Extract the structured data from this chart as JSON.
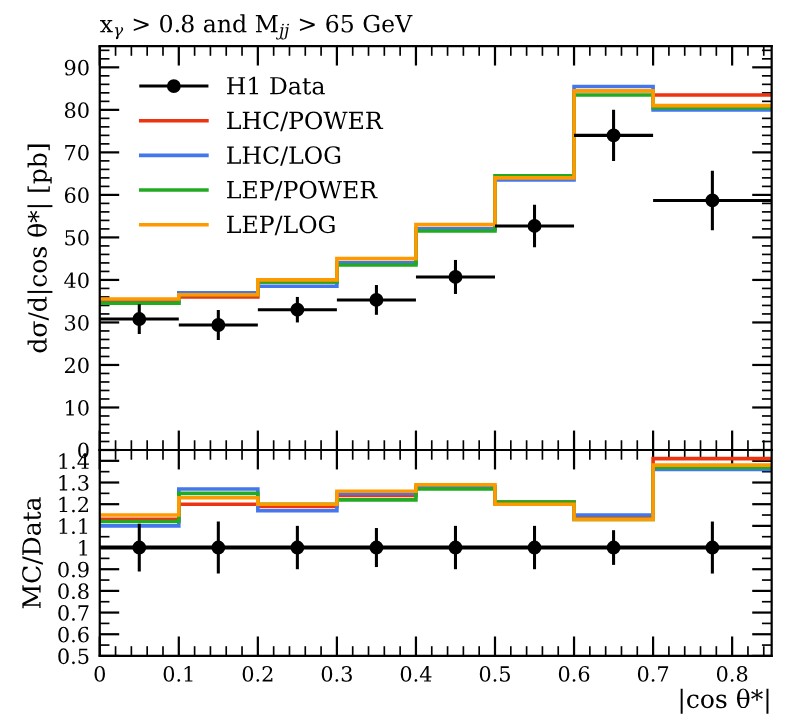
{
  "chart_data": [
    {
      "type": "histogram",
      "title": "x$_{γ}$ > 0.8 and M$_{jj}$ > 65 GeV",
      "ylabel": "dσ/d|cos θ*| [pb]",
      "bins": [
        0,
        0.1,
        0.2,
        0.3,
        0.4,
        0.5,
        0.6,
        0.7,
        0.85
      ],
      "xlim": [
        0,
        0.85
      ],
      "xticks": [
        0,
        0.1,
        0.2,
        0.3,
        0.4,
        0.5,
        0.6,
        0.7,
        0.8
      ],
      "ylim": [
        0,
        95
      ],
      "yticks": [
        0,
        10,
        20,
        30,
        40,
        50,
        60,
        70,
        80,
        90
      ],
      "tick_labels": "y",
      "legend": "top left",
      "grid": false,
      "series": [
        {
          "name": "H1 Data",
          "type": "scatter",
          "color": "#000000",
          "marker": "circle",
          "x": [
            0.05,
            0.15,
            0.25,
            0.35,
            0.45,
            0.55,
            0.65,
            0.775
          ],
          "values": [
            30.8,
            29.4,
            33,
            35.3,
            40.7,
            52.7,
            74,
            58.7
          ],
          "errors": [
            3.5,
            3.5,
            3,
            3.5,
            4,
            5,
            6,
            7
          ],
          "xerrors": [
            0.05,
            0.05,
            0.05,
            0.05,
            0.05,
            0.05,
            0.05,
            0.075
          ]
        },
        {
          "name": "LHC/POWER",
          "color": "#ee3311",
          "values": [
            35,
            36,
            39.5,
            44,
            52,
            64,
            84.5,
            83.5
          ]
        },
        {
          "name": "LHC/LOG",
          "color": "#4477ee",
          "values": [
            34.5,
            37,
            38.5,
            44,
            52,
            63.5,
            85.5,
            80
          ]
        },
        {
          "name": "LEP/POWER",
          "color": "#22aa22",
          "values": [
            34.5,
            36.5,
            39.5,
            43.5,
            51.5,
            64.5,
            83.5,
            80.5
          ]
        },
        {
          "name": "LEP/LOG",
          "color": "#ff9900",
          "values": [
            35.5,
            36.5,
            40,
            45,
            53,
            64,
            84.5,
            81
          ]
        }
      ]
    },
    {
      "type": "histogram",
      "xlabel": "|cos θ*|",
      "ylabel": "MC/Data",
      "bins": [
        0,
        0.1,
        0.2,
        0.3,
        0.4,
        0.5,
        0.6,
        0.7,
        0.85
      ],
      "xlim": [
        0,
        0.85
      ],
      "xticks": [
        0,
        0.1,
        0.2,
        0.3,
        0.4,
        0.5,
        0.6,
        0.7,
        0.8
      ],
      "ylim": [
        0.5,
        1.45
      ],
      "yticks": [
        0.5,
        0.6,
        0.7,
        0.8,
        0.9,
        1,
        1.1,
        1.2,
        1.3,
        1.4
      ],
      "grid": false,
      "ref_lines": [
        {
          "axis": "y",
          "value": 1,
          "color": "#000000"
        }
      ],
      "series": [
        {
          "type": "scatter",
          "color": "#000000",
          "marker": "circle",
          "x": [
            0.05,
            0.15,
            0.25,
            0.35,
            0.45,
            0.55,
            0.65,
            0.775
          ],
          "values": [
            1,
            1,
            1,
            1,
            1,
            1,
            1,
            1
          ],
          "errors": [
            0.11,
            0.12,
            0.1,
            0.09,
            0.1,
            0.1,
            0.08,
            0.12
          ]
        },
        {
          "color": "#ee3311",
          "values": [
            1.13,
            1.2,
            1.19,
            1.24,
            1.28,
            1.21,
            1.14,
            1.41
          ]
        },
        {
          "color": "#4477ee",
          "values": [
            1.1,
            1.27,
            1.17,
            1.25,
            1.28,
            1.2,
            1.15,
            1.36
          ]
        },
        {
          "color": "#22aa22",
          "values": [
            1.12,
            1.25,
            1.2,
            1.22,
            1.27,
            1.21,
            1.13,
            1.37
          ]
        },
        {
          "color": "#ff9900",
          "values": [
            1.15,
            1.23,
            1.2,
            1.26,
            1.29,
            1.2,
            1.13,
            1.38
          ]
        }
      ]
    }
  ]
}
